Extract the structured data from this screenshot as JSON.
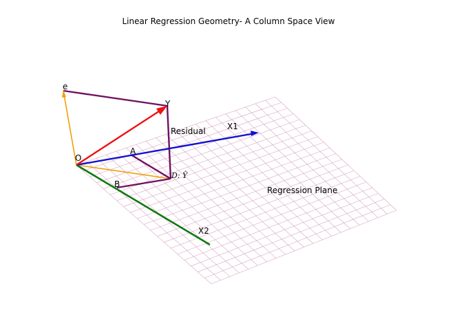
{
  "title": "Linear Regression Geometry- A Column Space View",
  "labels": {
    "origin": "O",
    "y": "Y",
    "e": "e",
    "a": "A",
    "b": "B",
    "d": "D: Ŷ",
    "x1": "X1",
    "x2": "X2",
    "residual": "Residual",
    "plane": "Regression Plane"
  },
  "colors": {
    "grid": "#d9a3c4",
    "x1": "#1010d0",
    "x2": "#0e7a0e",
    "y": "#ee1111",
    "e": "#f0a000",
    "residual": "#6e1060"
  }
}
